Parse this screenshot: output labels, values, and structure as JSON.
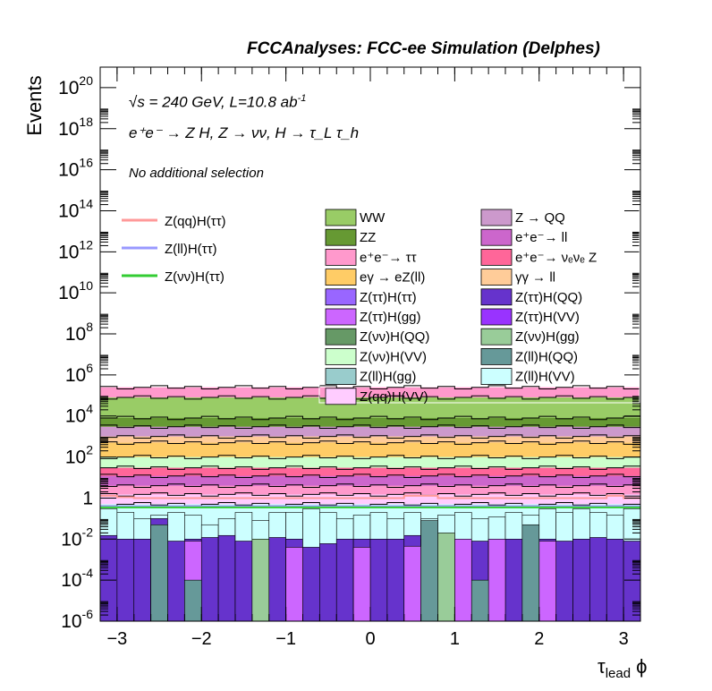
{
  "header": {
    "title": "FCCAnalyses: FCC-ee Simulation (Delphes)",
    "energy_text": "√s = 240 GeV, L=10.8 ab",
    "energy_sup": "-1",
    "process_text": "e⁺e⁻ → Z H, Z → νν, H → τ_L τ_h",
    "selection_text": "No additional selection"
  },
  "chart_data": {
    "type": "bar",
    "stacked": true,
    "log_y": true,
    "xlabel": "τlead ϕ",
    "ylabel": "Events",
    "xlim": [
      -3.2,
      3.2
    ],
    "ylim": [
      1e-06,
      1e+21
    ],
    "x_ticks": [
      -3,
      -2,
      -1,
      0,
      1,
      2,
      3
    ],
    "x_tick_labels": [
      "−3",
      "−2",
      "−1",
      "0",
      "1",
      "2",
      "3"
    ],
    "y_ticks": [
      1e-06,
      0.0001,
      0.01,
      1,
      100.0,
      10000.0,
      1000000.0,
      100000000.0,
      10000000000.0,
      1000000000000.0,
      100000000000000.0,
      1e+16,
      1e+18,
      1e+20
    ],
    "y_tick_labels": [
      "10^-6",
      "10^-4",
      "10^-2",
      "1",
      "10^2",
      "10^4",
      "10^6",
      "10^8",
      "10^10",
      "10^12",
      "10^14",
      "10^16",
      "10^18",
      "10^20"
    ],
    "bins": 32,
    "stack_legend": [
      {
        "name": "WW",
        "color": "#99cc66"
      },
      {
        "name": "Z → QQ",
        "color": "#cc99cc"
      },
      {
        "name": "ZZ",
        "color": "#669933"
      },
      {
        "name": "e⁺e⁻→ ll",
        "color": "#cc66cc"
      },
      {
        "name": "e⁺e⁻→ ττ",
        "color": "#ff99cc"
      },
      {
        "name": "e⁺e⁻→ νₑνₑ Z",
        "color": "#ff6699"
      },
      {
        "name": "eγ → eZ(ll)",
        "color": "#ffcc66"
      },
      {
        "name": "γγ → ll",
        "color": "#ffcc99"
      },
      {
        "name": "Z(ττ)H(ττ)",
        "color": "#9966ff"
      },
      {
        "name": "Z(ττ)H(QQ)",
        "color": "#6633cc"
      },
      {
        "name": "Z(ττ)H(gg)",
        "color": "#cc66ff"
      },
      {
        "name": "Z(ττ)H(VV)",
        "color": "#9933ff"
      },
      {
        "name": "Z(νν)H(QQ)",
        "color": "#669966"
      },
      {
        "name": "Z(νν)H(gg)",
        "color": "#99cc99"
      },
      {
        "name": "Z(νν)H(VV)",
        "color": "#ccffcc"
      },
      {
        "name": "Z(ll)H(QQ)",
        "color": "#669999"
      },
      {
        "name": "Z(ll)H(gg)",
        "color": "#99cccc"
      },
      {
        "name": "Z(ll)H(VV)",
        "color": "#ccffff"
      },
      {
        "name": "Z(qq)H(VV)",
        "color": "#ffccff"
      }
    ],
    "signal_legend": [
      {
        "name": "Z(qq)H(ττ)",
        "color": "#ff9999"
      },
      {
        "name": "Z(ll)H(ττ)",
        "color": "#9999ff"
      },
      {
        "name": "Z(νν)H(ττ)",
        "color": "#33cc33"
      }
    ],
    "stack_boundaries": [
      {
        "color": "#ccffff",
        "top": 0.5
      },
      {
        "color": "#ffccff",
        "top": 1.5
      },
      {
        "color": "#ff99cc",
        "top": 4
      },
      {
        "color": "#cc66cc",
        "top": 12
      },
      {
        "color": "#ff6699",
        "top": 30
      },
      {
        "color": "#ccffcc",
        "top": 100
      },
      {
        "color": "#ffcc66",
        "top": 500
      },
      {
        "color": "#ffcc99",
        "top": 1000
      },
      {
        "color": "#cc99cc",
        "top": 3000
      },
      {
        "color": "#669933",
        "top": 8000
      },
      {
        "color": "#99cc66",
        "top": 80000
      },
      {
        "color": "#ff99cc",
        "top": 250000
      }
    ],
    "signal_lines": [
      {
        "name": "Z(qq)H(ττ)",
        "values": [
          1.3,
          1.1,
          1.0,
          1.0,
          1.0,
          1.0,
          1.0,
          1.0,
          1.0,
          1.0,
          1.0,
          1.0,
          1.0,
          1.0,
          1.0,
          1.0,
          1.0,
          1.0,
          1.3,
          1.3,
          1.0,
          1.0,
          1.0,
          1.0,
          1.0,
          1.0,
          1.0,
          1.0,
          1.0,
          1.0,
          1.3,
          1.0
        ]
      },
      {
        "name": "Z(ll)H(ττ)",
        "values": [
          0.4,
          0.4,
          0.4,
          0.4,
          0.4,
          0.4,
          0.4,
          0.4,
          0.4,
          0.4,
          0.4,
          0.4,
          0.4,
          0.4,
          0.4,
          0.4,
          0.4,
          0.4,
          0.4,
          0.4,
          0.4,
          0.4,
          0.4,
          0.4,
          0.4,
          0.4,
          0.4,
          0.4,
          0.4,
          0.4,
          0.4,
          0.4
        ]
      },
      {
        "name": "Z(νν)H(ττ)",
        "values": [
          0.35,
          0.35,
          0.35,
          0.35,
          0.35,
          0.35,
          0.35,
          0.35,
          0.35,
          0.35,
          0.35,
          0.35,
          0.35,
          0.35,
          0.35,
          0.35,
          0.35,
          0.35,
          0.35,
          0.35,
          0.35,
          0.35,
          0.35,
          0.35,
          0.35,
          0.35,
          0.35,
          0.35,
          0.35,
          0.35,
          0.35,
          0.35
        ]
      }
    ],
    "low_purple_tops": [
      0.015,
      0.01,
      0.01,
      0.1,
      0.008,
      0.01,
      0.012,
      0.015,
      0.008,
      0.01,
      0.012,
      0.01,
      0.004,
      0.006,
      0.01,
      0.01,
      0.01,
      0.01,
      0.015,
      0.01,
      0.012,
      0.01,
      0.008,
      0.01,
      0.01,
      0.012,
      0.01,
      0.008,
      0.01,
      0.012,
      0.01,
      0.008
    ],
    "ztt_hgg_bins": [
      {
        "bin": 5,
        "top": 0.008
      },
      {
        "bin": 11,
        "top": 0.004
      },
      {
        "bin": 15,
        "top": 0.004
      },
      {
        "bin": 18,
        "top": 0.0045
      },
      {
        "bin": 21,
        "top": 0.01
      },
      {
        "bin": 23,
        "top": 0.01
      },
      {
        "bin": 26,
        "top": 0.008
      }
    ],
    "znn_hgg_bins": [
      {
        "bin": 9,
        "top": 0.01
      },
      {
        "bin": 20,
        "top": 0.02
      },
      {
        "bin": 25,
        "top": 0.01
      }
    ],
    "zll_hqq_bins": [
      {
        "bin": 3,
        "top": 0.05
      },
      {
        "bin": 5,
        "top": 0.0001
      },
      {
        "bin": 19,
        "top": 0.08
      },
      {
        "bin": 22,
        "top": 0.0001
      },
      {
        "bin": 25,
        "top": 0.05
      }
    ],
    "cyan_layer_tops": [
      0.3,
      0.2,
      0.1,
      0.15,
      0.2,
      0.15,
      0.05,
      0.1,
      0.2,
      0.08,
      0.2,
      0.2,
      0.3,
      0.2,
      0.1,
      0.15,
      0.2,
      0.1,
      0.2,
      0.1,
      0.15,
      0.2,
      0.1,
      0.12,
      0.2,
      0.15,
      0.3,
      0.2,
      0.3,
      0.2,
      0.15,
      0.3
    ]
  }
}
